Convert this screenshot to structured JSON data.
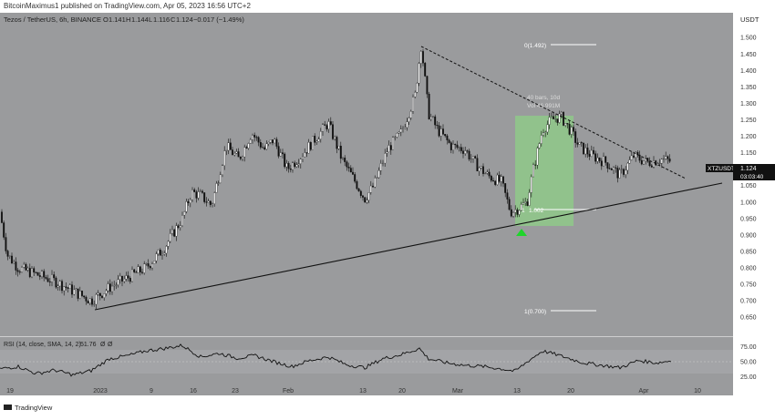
{
  "publish_line": "BitcoinMaximus1 published on TradingView.com, Apr 05, 2023 16:56 UTC+2",
  "symbol_info": "Tezos / TetherUS, 6h, BINANCE",
  "ohlc": {
    "o_label": "O",
    "o_value": "1.141",
    "h_label": "H",
    "h_value": "1.144",
    "l_label": "L",
    "l_value": "1.116",
    "c_label": "C",
    "c_value": "1.124",
    "change": "−0.017 (−1.49%)"
  },
  "currency_label": "USDT",
  "price_badge": {
    "symbol": "XTZUSDT",
    "price": "1.124",
    "countdown": "03:03:40"
  },
  "fib_labels": {
    "top": "0(1.492)",
    "mid": "1.002",
    "mid_prefix": "1",
    "bottom": "1(0.700)"
  },
  "range_box": {
    "bars_text": "40 bars, 10d",
    "vol_text": "Vol 46.991M"
  },
  "rsi_legend": {
    "label": "RSI (14, close, SMA, 14, 2)",
    "value": "51.76",
    "extra1": "Ø",
    "extra2": "Ø"
  },
  "logo_text": "TradingView",
  "colors": {
    "plot_bg": "#9a9b9d",
    "candle_up": "#ffffff",
    "candle_down": "#111111",
    "box": "#8fc98a",
    "arrow": "#1fd52b",
    "line": "#111111"
  },
  "chart_data": {
    "type": "line",
    "ylim": [
      0.62,
      1.52
    ],
    "y_ticks": [
      "1.500",
      "1.450",
      "1.400",
      "1.350",
      "1.300",
      "1.250",
      "1.200",
      "1.150",
      "1.100",
      "1.050",
      "1.000",
      "0.950",
      "0.900",
      "0.850",
      "0.800",
      "0.750",
      "0.700",
      "0.650"
    ],
    "x_ticks": [
      "19",
      "2023",
      "9",
      "16",
      "23",
      "Feb",
      "13",
      "20",
      "Mar",
      "13",
      "20",
      "Apr",
      "10"
    ],
    "price_anchors": [
      [
        0,
        0.97
      ],
      [
        8,
        0.84
      ],
      [
        20,
        0.8
      ],
      [
        40,
        0.78
      ],
      [
        60,
        0.76
      ],
      [
        80,
        0.73
      ],
      [
        100,
        0.7
      ],
      [
        120,
        0.74
      ],
      [
        140,
        0.77
      ],
      [
        160,
        0.8
      ],
      [
        180,
        0.86
      ],
      [
        200,
        0.95
      ],
      [
        210,
        1.03
      ],
      [
        220,
        1.02
      ],
      [
        232,
        0.99
      ],
      [
        248,
        1.17
      ],
      [
        262,
        1.13
      ],
      [
        276,
        1.21
      ],
      [
        290,
        1.16
      ],
      [
        300,
        1.19
      ],
      [
        315,
        1.1
      ],
      [
        330,
        1.14
      ],
      [
        345,
        1.19
      ],
      [
        360,
        1.24
      ],
      [
        375,
        1.13
      ],
      [
        390,
        1.06
      ],
      [
        400,
        1.01
      ],
      [
        410,
        1.05
      ],
      [
        425,
        1.16
      ],
      [
        440,
        1.21
      ],
      [
        455,
        1.32
      ],
      [
        462,
        1.48
      ],
      [
        470,
        1.27
      ],
      [
        480,
        1.22
      ],
      [
        495,
        1.17
      ],
      [
        510,
        1.16
      ],
      [
        520,
        1.12
      ],
      [
        535,
        1.08
      ],
      [
        550,
        1.06
      ],
      [
        560,
        0.97
      ],
      [
        568,
        0.98
      ],
      [
        578,
        1.0
      ],
      [
        585,
        1.1
      ],
      [
        595,
        1.22
      ],
      [
        605,
        1.25
      ],
      [
        615,
        1.26
      ],
      [
        625,
        1.22
      ],
      [
        635,
        1.17
      ],
      [
        650,
        1.14
      ],
      [
        665,
        1.12
      ],
      [
        680,
        1.08
      ],
      [
        695,
        1.14
      ],
      [
        710,
        1.12
      ],
      [
        725,
        1.13
      ],
      [
        736,
        1.124
      ]
    ],
    "rsi_ticks": [
      "75.00",
      "50.00",
      "25.00"
    ],
    "rsi_anchors": [
      [
        0,
        38
      ],
      [
        20,
        42
      ],
      [
        40,
        30
      ],
      [
        60,
        36
      ],
      [
        80,
        28
      ],
      [
        100,
        35
      ],
      [
        120,
        55
      ],
      [
        140,
        60
      ],
      [
        160,
        68
      ],
      [
        180,
        72
      ],
      [
        200,
        77
      ],
      [
        220,
        58
      ],
      [
        240,
        64
      ],
      [
        260,
        56
      ],
      [
        280,
        60
      ],
      [
        300,
        50
      ],
      [
        320,
        42
      ],
      [
        340,
        52
      ],
      [
        360,
        58
      ],
      [
        380,
        45
      ],
      [
        400,
        40
      ],
      [
        420,
        55
      ],
      [
        440,
        62
      ],
      [
        460,
        72
      ],
      [
        470,
        55
      ],
      [
        490,
        48
      ],
      [
        510,
        44
      ],
      [
        530,
        42
      ],
      [
        550,
        38
      ],
      [
        565,
        34
      ],
      [
        580,
        52
      ],
      [
        595,
        68
      ],
      [
        610,
        62
      ],
      [
        625,
        55
      ],
      [
        640,
        48
      ],
      [
        660,
        44
      ],
      [
        680,
        40
      ],
      [
        700,
        52
      ],
      [
        720,
        48
      ],
      [
        736,
        51.76
      ]
    ]
  }
}
